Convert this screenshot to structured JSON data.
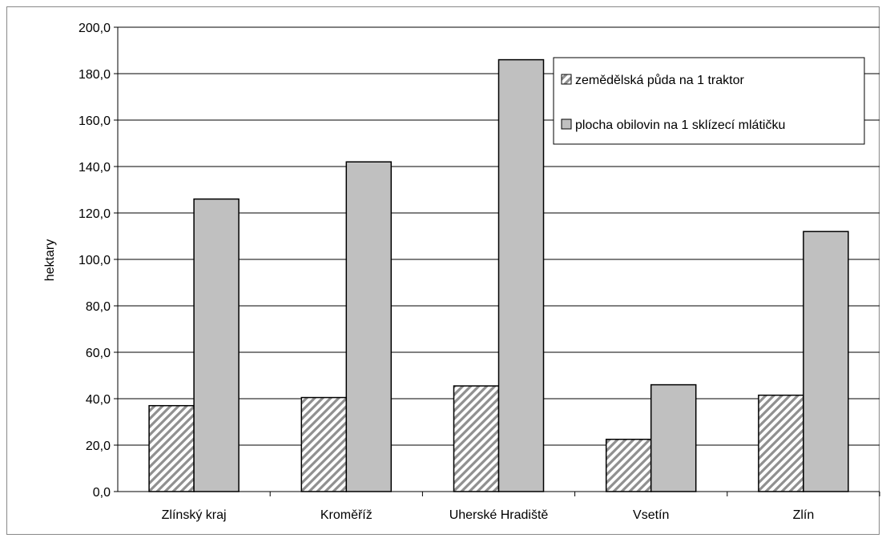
{
  "chart_data": {
    "type": "bar",
    "title": "",
    "xlabel": "",
    "ylabel": "hektary",
    "ylim": [
      0,
      200
    ],
    "yticks": [
      "0,0",
      "20,0",
      "40,0",
      "60,0",
      "80,0",
      "100,0",
      "120,0",
      "140,0",
      "160,0",
      "180,0",
      "200,0"
    ],
    "categories": [
      "Zlínský kraj",
      "Kroměříž",
      "Uherské Hradiště",
      "Vsetín",
      "Zlín"
    ],
    "series": [
      {
        "name": "zemědělská půda na 1 traktor",
        "values": [
          37,
          40.5,
          45.5,
          22.5,
          41.5
        ],
        "pattern": "diagonal-hatch"
      },
      {
        "name": "plocha obilovin na 1 sklízecí mlátičku",
        "values": [
          126,
          142,
          186,
          46,
          112
        ],
        "color": "#c0c0c0"
      }
    ],
    "grid": true,
    "legend_position": "top-right"
  }
}
